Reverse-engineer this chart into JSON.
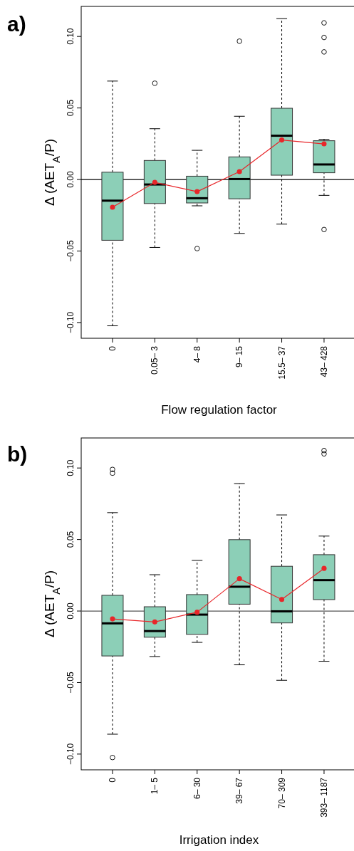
{
  "chart_data": [
    {
      "type": "box",
      "title": "a)",
      "xlabel": "Flow regulation factor",
      "ylabel": "Δ (AET$_{A}$/P)",
      "categories": [
        "0",
        "0.05– 3",
        "4– 8",
        "9– 15",
        "15.5– 37",
        "43– 428"
      ],
      "ylim": [
        -0.111,
        0.121
      ],
      "yticks": [
        {
          "value": -0.1,
          "label": "−0.10"
        },
        {
          "value": -0.05,
          "label": "−0.05"
        },
        {
          "value": 0,
          "label": "0.00"
        },
        {
          "value": 0.05,
          "label": "0.05"
        },
        {
          "value": 0.1,
          "label": "0.10"
        }
      ],
      "ref_lines": [
        {
          "axis": "y",
          "value": 0,
          "color": "#000000"
        }
      ],
      "series": [
        {
          "type": "box",
          "color": "#8ccfb7",
          "boxes": [
            {
              "low": -0.1023,
              "q1": -0.0425,
              "median": -0.0148,
              "q3": 0.0051,
              "high": 0.0688
            },
            {
              "low": -0.0475,
              "q1": -0.0168,
              "median": -0.0035,
              "q3": 0.0133,
              "high": 0.0355,
              "outliers": [
                0.0673
              ]
            },
            {
              "low": -0.0184,
              "q1": -0.0164,
              "median": -0.0131,
              "q3": 0.0023,
              "high": 0.0204,
              "outliers": [
                -0.0483
              ]
            },
            {
              "low": -0.0377,
              "q1": -0.0135,
              "median": 0.0003,
              "q3": 0.0158,
              "high": 0.0442,
              "outliers": [
                0.0967
              ]
            },
            {
              "low": -0.0312,
              "q1": 0.003,
              "median": 0.0306,
              "q3": 0.0498,
              "high": 0.1125
            },
            {
              "low": -0.0111,
              "q1": 0.0047,
              "median": 0.0105,
              "q3": 0.0271,
              "high": 0.0281,
              "outliers": [
                0.1095,
                0.0993,
                0.0892,
                -0.035
              ]
            }
          ]
        },
        {
          "type": "line",
          "color": "#e8262a",
          "marker": "circle",
          "x": [
            "0",
            "0.05– 3",
            "4– 8",
            "9– 15",
            "15.5– 37",
            "43– 428"
          ],
          "values": [
            -0.0194,
            -0.002,
            -0.0085,
            0.0055,
            0.0276,
            0.0249
          ]
        }
      ]
    },
    {
      "type": "box",
      "title": "b)",
      "xlabel": "Irrigation index",
      "ylabel": "Δ (AET$_{A}$/P)",
      "categories": [
        "0",
        "1– 5",
        "6– 30",
        "39– 67",
        "70– 309",
        "393– 1187"
      ],
      "ylim": [
        -0.111,
        0.121
      ],
      "yticks": [
        {
          "value": -0.1,
          "label": "−0.10"
        },
        {
          "value": -0.05,
          "label": "−0.05"
        },
        {
          "value": 0,
          "label": "0.00"
        },
        {
          "value": 0.05,
          "label": "0.05"
        },
        {
          "value": 0.1,
          "label": "0.10"
        }
      ],
      "ref_lines": [
        {
          "axis": "y",
          "value": 0,
          "color": "#555555"
        }
      ],
      "series": [
        {
          "type": "box",
          "color": "#8ccfb7",
          "boxes": [
            {
              "low": -0.0861,
              "q1": -0.0314,
              "median": -0.0086,
              "q3": 0.011,
              "high": 0.0688,
              "outliers": [
                0.099,
                0.0964,
                -0.1024
              ]
            },
            {
              "low": -0.0318,
              "q1": -0.0183,
              "median": -0.014,
              "q3": 0.003,
              "high": 0.0254
            },
            {
              "low": -0.0219,
              "q1": -0.0163,
              "median": -0.0025,
              "q3": 0.0115,
              "high": 0.0354
            },
            {
              "low": -0.0376,
              "q1": 0.0048,
              "median": 0.017,
              "q3": 0.0499,
              "high": 0.0891
            },
            {
              "low": -0.0484,
              "q1": -0.0083,
              "median": -0.0002,
              "q3": 0.0313,
              "high": 0.0672
            },
            {
              "low": -0.0351,
              "q1": 0.008,
              "median": 0.0216,
              "q3": 0.0394,
              "high": 0.0524,
              "outliers": [
                0.1122,
                0.1099
              ]
            }
          ]
        },
        {
          "type": "line",
          "color": "#e8262a",
          "marker": "circle",
          "x": [
            "0",
            "1– 5",
            "6– 30",
            "39– 67",
            "70– 309",
            "393– 1187"
          ],
          "values": [
            -0.0055,
            -0.0076,
            -0.0008,
            0.0226,
            0.0081,
            0.0298
          ]
        }
      ]
    }
  ]
}
